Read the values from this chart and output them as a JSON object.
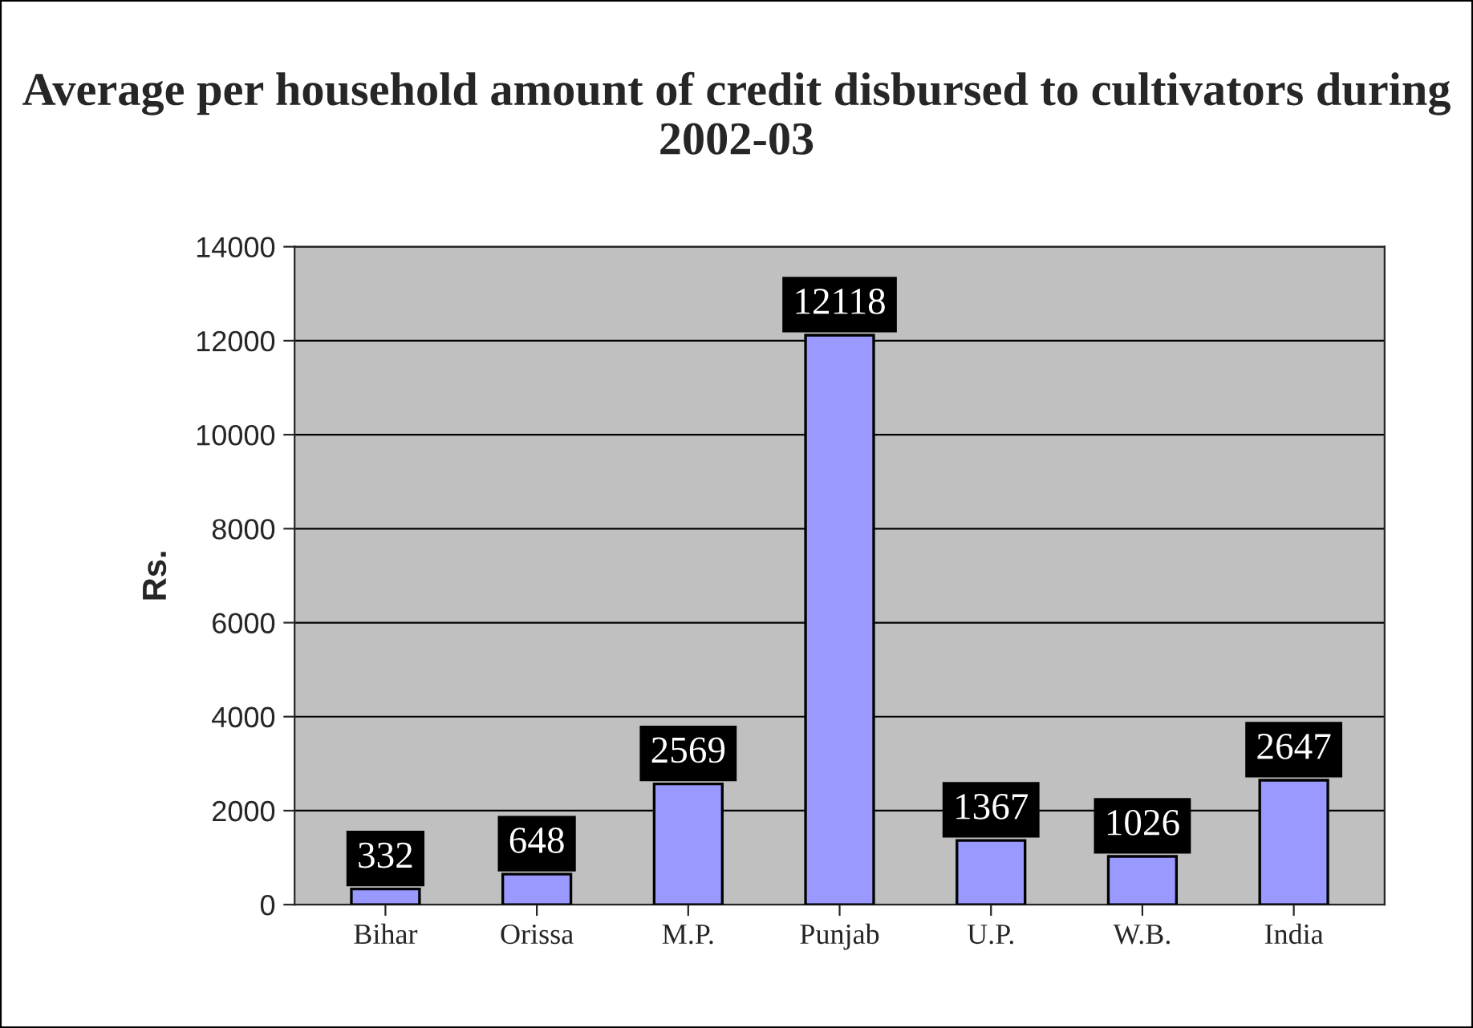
{
  "chart_data": {
    "type": "bar",
    "title": "Average per household amount of credit disbursed to cultivators during 2002-03",
    "ylabel": "Rs.",
    "categories": [
      "Bihar",
      "Orissa",
      "M.P.",
      "Punjab",
      "U.P.",
      "W.B.",
      "India"
    ],
    "values": [
      332,
      648,
      2569,
      12118,
      1367,
      1026,
      2647
    ],
    "color": "#9999ff",
    "ylim": [
      0,
      14000
    ],
    "yticks": [
      0,
      2000,
      4000,
      6000,
      8000,
      10000,
      12000,
      14000
    ],
    "grid": "y",
    "data_labels": true,
    "legend": false
  }
}
